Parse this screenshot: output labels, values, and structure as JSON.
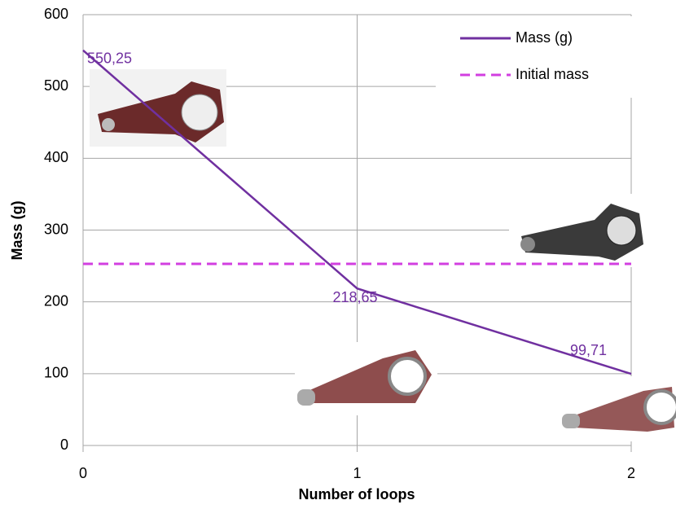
{
  "chart_data": {
    "type": "line",
    "x_label": "Number of loops",
    "y_label": "Mass (g)",
    "x": [
      0,
      1,
      2
    ],
    "series": [
      {
        "name": "Mass (g)",
        "color": "#7030a0",
        "dash": false,
        "values": [
          550.25,
          218.65,
          99.71
        ],
        "value_labels": [
          "550,25",
          "218,65",
          "99,71"
        ]
      },
      {
        "name": "Initial mass",
        "color": "#d23fe0",
        "dash": true,
        "values": [
          253,
          253,
          253
        ]
      }
    ],
    "xlim": [
      0,
      2
    ],
    "xticks": [
      0,
      1,
      2
    ],
    "ylim": [
      0,
      600
    ],
    "yticks": [
      0,
      100,
      200,
      300,
      400,
      500,
      600
    ],
    "grid": true,
    "legend": "upper right"
  }
}
